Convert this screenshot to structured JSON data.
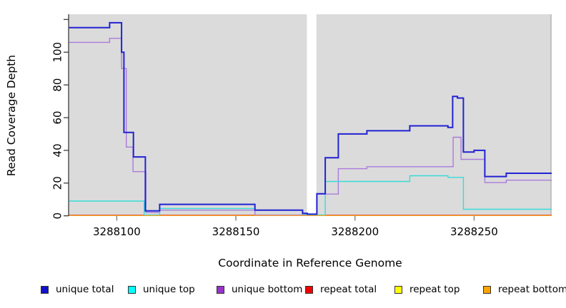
{
  "chart_data": {
    "type": "line",
    "style": "step-after",
    "title": "",
    "xlabel": "Coordinate in Reference Genome",
    "ylabel": "Read Coverage Depth",
    "xlim": [
      3288079.8,
      3288282.3
    ],
    "ylim": [
      0,
      123
    ],
    "x_ticks": [
      3288100,
      3288150,
      3288200,
      3288250
    ],
    "y_ticks": [
      0,
      20,
      40,
      60,
      80,
      100
    ],
    "y_ticks_unlabeled": [
      120
    ],
    "grid": false,
    "legend_position": "bottom",
    "panel_bg_color": "#DBDBDB",
    "panel_edge_color": "#C2C2C2",
    "axis_line_color": "#2E2E2E",
    "x_tick_color": "#808080",
    "mask_region": {
      "x0": 3288179.8,
      "x1": 3288183.8,
      "color": "#FFFFFF"
    },
    "draw_order": [
      4,
      3,
      2,
      1,
      0,
      5
    ],
    "legend_x_positions": [
      57,
      179,
      303,
      427,
      552,
      676
    ],
    "series": [
      {
        "name": "unique total",
        "line_color": "#2222D4",
        "legend_fill": "#1111CC",
        "line_width": 2,
        "points": [
          [
            3288080,
            115
          ],
          [
            3288097,
            118
          ],
          [
            3288102,
            100
          ],
          [
            3288103,
            51
          ],
          [
            3288107,
            36
          ],
          [
            3288112,
            3
          ],
          [
            3288118,
            7
          ],
          [
            3288158,
            3.5
          ],
          [
            3288178,
            1.5
          ],
          [
            3288180,
            1
          ],
          [
            3288184,
            13.5
          ],
          [
            3288187.5,
            35.5
          ],
          [
            3288193,
            50
          ],
          [
            3288205,
            52
          ],
          [
            3288223,
            55
          ],
          [
            3288239,
            54
          ],
          [
            3288241,
            73
          ],
          [
            3288243,
            72
          ],
          [
            3288245.5,
            39
          ],
          [
            3288250,
            40
          ],
          [
            3288254.5,
            24
          ],
          [
            3288263.5,
            26
          ]
        ]
      },
      {
        "name": "unique top",
        "line_color": "#38DCD8",
        "legend_fill": "#00FFFF",
        "line_width": 1.4,
        "points": [
          [
            3288080,
            9
          ],
          [
            3288111.5,
            0.5
          ],
          [
            3288118,
            4.5
          ],
          [
            3288158,
            3.5
          ],
          [
            3288178,
            1
          ],
          [
            3288180,
            0.5
          ],
          [
            3288187.5,
            21
          ],
          [
            3288223,
            24.5
          ],
          [
            3288239,
            23.5
          ],
          [
            3288245.5,
            4
          ]
        ]
      },
      {
        "name": "unique bottom",
        "line_color": "#AA7BDC",
        "legend_fill": "#9933CC",
        "line_width": 1.4,
        "points": [
          [
            3288080,
            106
          ],
          [
            3288097,
            108.5
          ],
          [
            3288102,
            90
          ],
          [
            3288104,
            42
          ],
          [
            3288106.8,
            27
          ],
          [
            3288112.2,
            2
          ],
          [
            3288118,
            3.5
          ],
          [
            3288158,
            0.5
          ],
          [
            3288184,
            13.3
          ],
          [
            3288193,
            28.8
          ],
          [
            3288205,
            30
          ],
          [
            3288241.2,
            48
          ],
          [
            3288244.5,
            34.5
          ],
          [
            3288254.5,
            20.3
          ],
          [
            3288263.5,
            21.8
          ]
        ]
      },
      {
        "name": "repeat total",
        "line_color": "#CC2222",
        "legend_fill": "#EE0000",
        "line_width": 1.4,
        "points": [
          [
            3288080,
            0.3
          ]
        ]
      },
      {
        "name": "repeat top",
        "line_color": "#FFFF00",
        "legend_fill": "#FFFF00",
        "line_width": 1.4,
        "points": [
          [
            3288080,
            0
          ]
        ]
      },
      {
        "name": "repeat bottom",
        "line_color": "#FFA020",
        "legend_fill": "#FFA500",
        "line_width": 2,
        "points": [
          [
            3288080,
            0
          ]
        ]
      }
    ]
  }
}
